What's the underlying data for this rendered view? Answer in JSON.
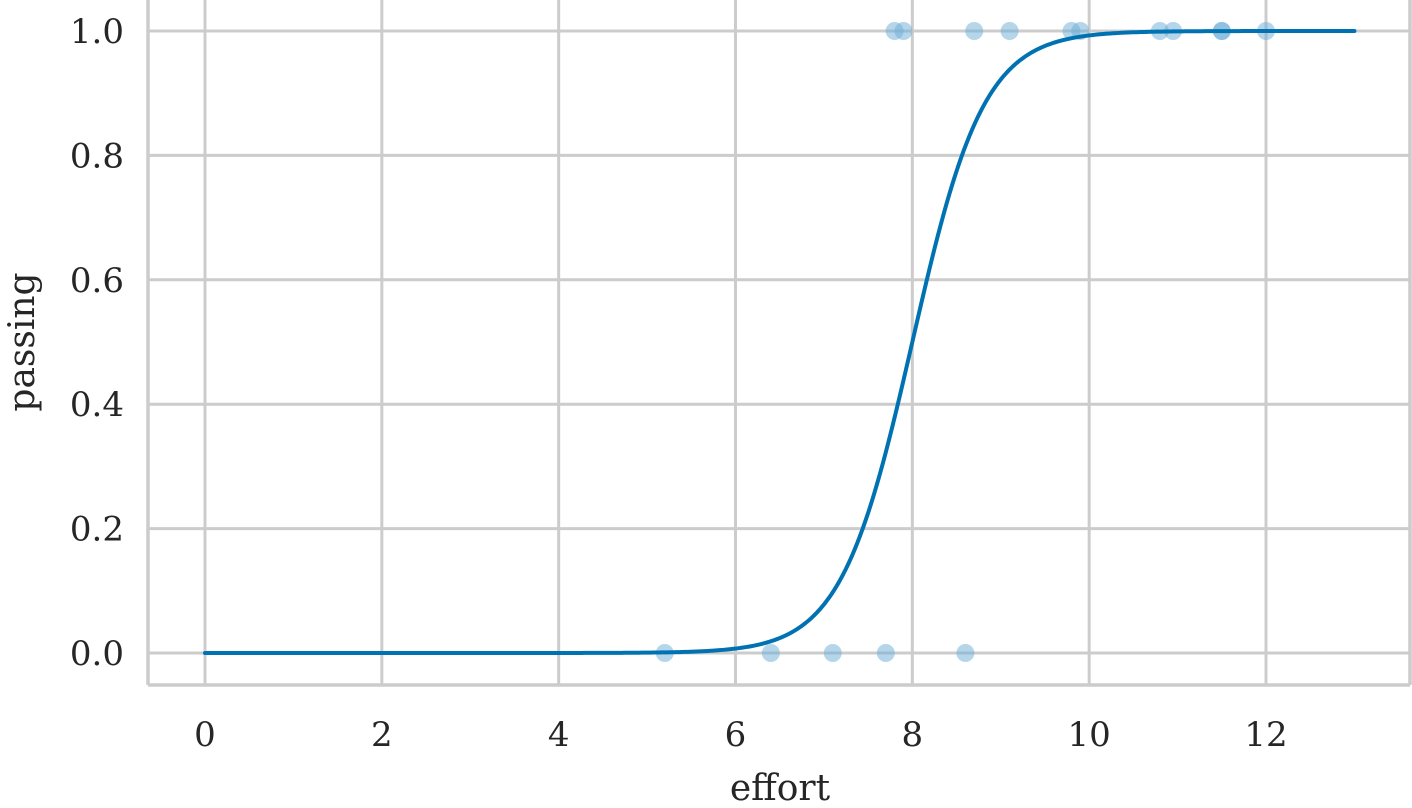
{
  "chart_data": {
    "type": "scatter",
    "xlabel": "effort",
    "ylabel": "passing",
    "xlim": [
      -0.65,
      13.6
    ],
    "ylim": [
      -0.05,
      1.05
    ],
    "xticks": [
      0,
      2,
      4,
      6,
      8,
      10,
      12
    ],
    "xtick_labels": [
      "0",
      "2",
      "4",
      "6",
      "8",
      "10",
      "12"
    ],
    "yticks": [
      0.0,
      0.2,
      0.4,
      0.6,
      0.8,
      1.0
    ],
    "ytick_labels": [
      "0.0",
      "0.2",
      "0.4",
      "0.6",
      "0.8",
      "1.0"
    ],
    "grid": true,
    "points": [
      {
        "x": 5.2,
        "y": 0
      },
      {
        "x": 6.4,
        "y": 0
      },
      {
        "x": 7.1,
        "y": 0
      },
      {
        "x": 7.7,
        "y": 0
      },
      {
        "x": 8.6,
        "y": 0
      },
      {
        "x": 7.8,
        "y": 1
      },
      {
        "x": 7.9,
        "y": 1
      },
      {
        "x": 8.7,
        "y": 1
      },
      {
        "x": 9.1,
        "y": 1
      },
      {
        "x": 9.8,
        "y": 1
      },
      {
        "x": 9.9,
        "y": 1
      },
      {
        "x": 10.8,
        "y": 1
      },
      {
        "x": 10.95,
        "y": 1
      },
      {
        "x": 11.5,
        "y": 1
      },
      {
        "x": 11.5,
        "y": 1
      },
      {
        "x": 12.0,
        "y": 1
      }
    ],
    "fit_curve": {
      "type": "logistic",
      "midpoint": 8.0,
      "slope": 2.47,
      "x_range": [
        0,
        13
      ]
    },
    "colors": {
      "points": "#6baed6",
      "curve": "#0072b2"
    }
  }
}
